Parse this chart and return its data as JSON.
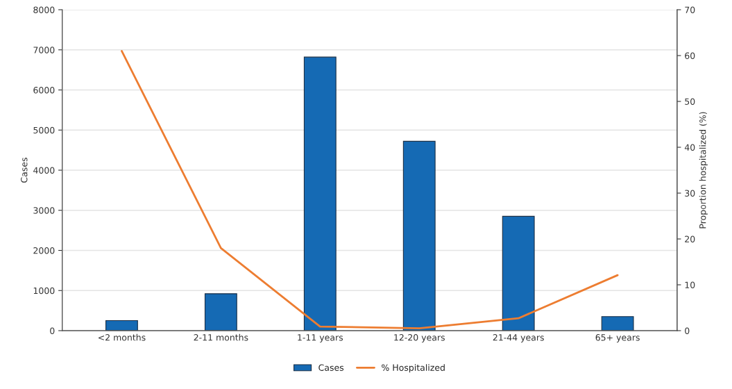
{
  "chart_data": {
    "type": "bar",
    "ylabel": "Cases",
    "y2label": "Proportion hospitalized (%)",
    "categories": [
      "<2 months",
      "2-11 months",
      "1-11 years",
      "12-20 years",
      "21-44 years",
      "65+ years"
    ],
    "series": [
      {
        "name": "Cases",
        "color": "#156ab4",
        "values": [
          250,
          920,
          6820,
          4720,
          2850,
          350
        ]
      },
      {
        "name": "% Hospitalized",
        "type": "line",
        "axis": "y2",
        "color": "#ed7d31",
        "values": [
          61,
          18,
          0.9,
          0.5,
          2.7,
          12.1
        ]
      }
    ],
    "ylim": [
      0,
      8000
    ],
    "yticks": [
      0,
      1000,
      2000,
      3000,
      4000,
      5000,
      6000,
      7000,
      8000
    ],
    "y2lim": [
      0,
      70
    ],
    "y2ticks": [
      0,
      10,
      20,
      30,
      40,
      50,
      60,
      70
    ],
    "grid": "y",
    "legend": "bottom"
  }
}
